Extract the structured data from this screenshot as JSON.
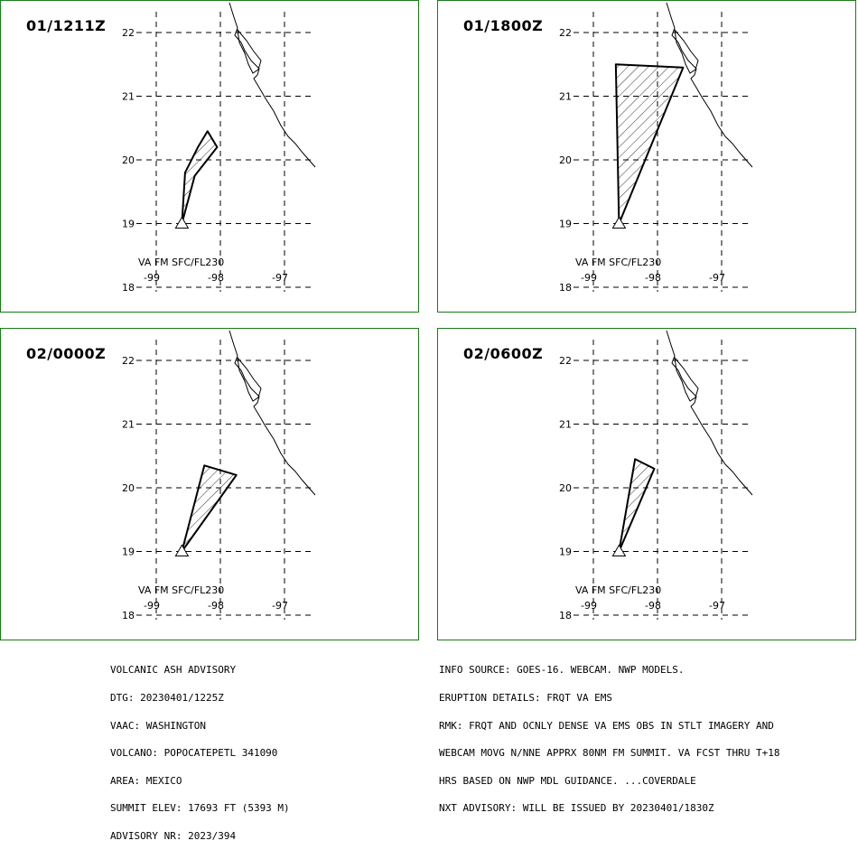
{
  "colors": {
    "panel_border": "#1a7a1a",
    "grid": "#000000",
    "coast": "#000000",
    "ash_fill": "hatched"
  },
  "grid": {
    "lat_labels": [
      "22",
      "21",
      "20",
      "19",
      "18"
    ],
    "lon_labels": [
      "-99",
      "-98",
      "-97"
    ]
  },
  "panels": [
    {
      "time": "01/1211Z",
      "va_label": "VA FM SFC/FL230",
      "polygon": [
        [
          -98.6,
          19.0
        ],
        [
          -98.55,
          19.8
        ],
        [
          -98.35,
          20.2
        ],
        [
          -98.2,
          20.45
        ],
        [
          -98.05,
          20.2
        ],
        [
          -98.4,
          19.75
        ],
        [
          -98.6,
          19.0
        ]
      ]
    },
    {
      "time": "01/1800Z",
      "va_label": "VA FM SFC/FL230",
      "polygon": [
        [
          -98.6,
          19.0
        ],
        [
          -98.65,
          21.5
        ],
        [
          -97.6,
          21.45
        ],
        [
          -98.6,
          19.0
        ]
      ]
    },
    {
      "time": "02/0000Z",
      "va_label": "VA FM SFC/FL230",
      "polygon": [
        [
          -98.6,
          19.0
        ],
        [
          -98.25,
          20.35
        ],
        [
          -97.75,
          20.2
        ],
        [
          -98.6,
          19.0
        ]
      ]
    },
    {
      "time": "02/0600Z",
      "va_label": "VA FM SFC/FL230",
      "polygon": [
        [
          -98.6,
          19.0
        ],
        [
          -98.35,
          20.45
        ],
        [
          -98.05,
          20.3
        ],
        [
          -98.6,
          19.0
        ]
      ]
    }
  ],
  "advisory": {
    "title": "VOLCANIC ASH ADVISORY",
    "dtg": "DTG: 20230401/1225Z",
    "vaac": "VAAC: WASHINGTON",
    "volcano": "VOLCANO: POPOCATEPETL 341090",
    "area": "AREA: MEXICO",
    "summit": "SUMMIT ELEV: 17693 FT (5393 M)",
    "advisory_nr": "ADVISORY NR: 2023/394"
  },
  "info": {
    "source": "INFO SOURCE: GOES-16. WEBCAM. NWP MODELS.",
    "eruption": "ERUPTION DETAILS: FRQT VA EMS",
    "rmk1": "RMK: FRQT AND OCNLY DENSE VA EMS OBS IN STLT IMAGERY AND",
    "rmk2": "WEBCAM MOVG N/NNE APPRX 80NM FM SUMMIT. VA FCST THRU T+18",
    "rmk3": "HRS BASED ON NWP MDL GUIDANCE. ...COVERDALE",
    "next": "NXT ADVISORY: WILL BE ISSUED BY 20230401/1830Z"
  }
}
